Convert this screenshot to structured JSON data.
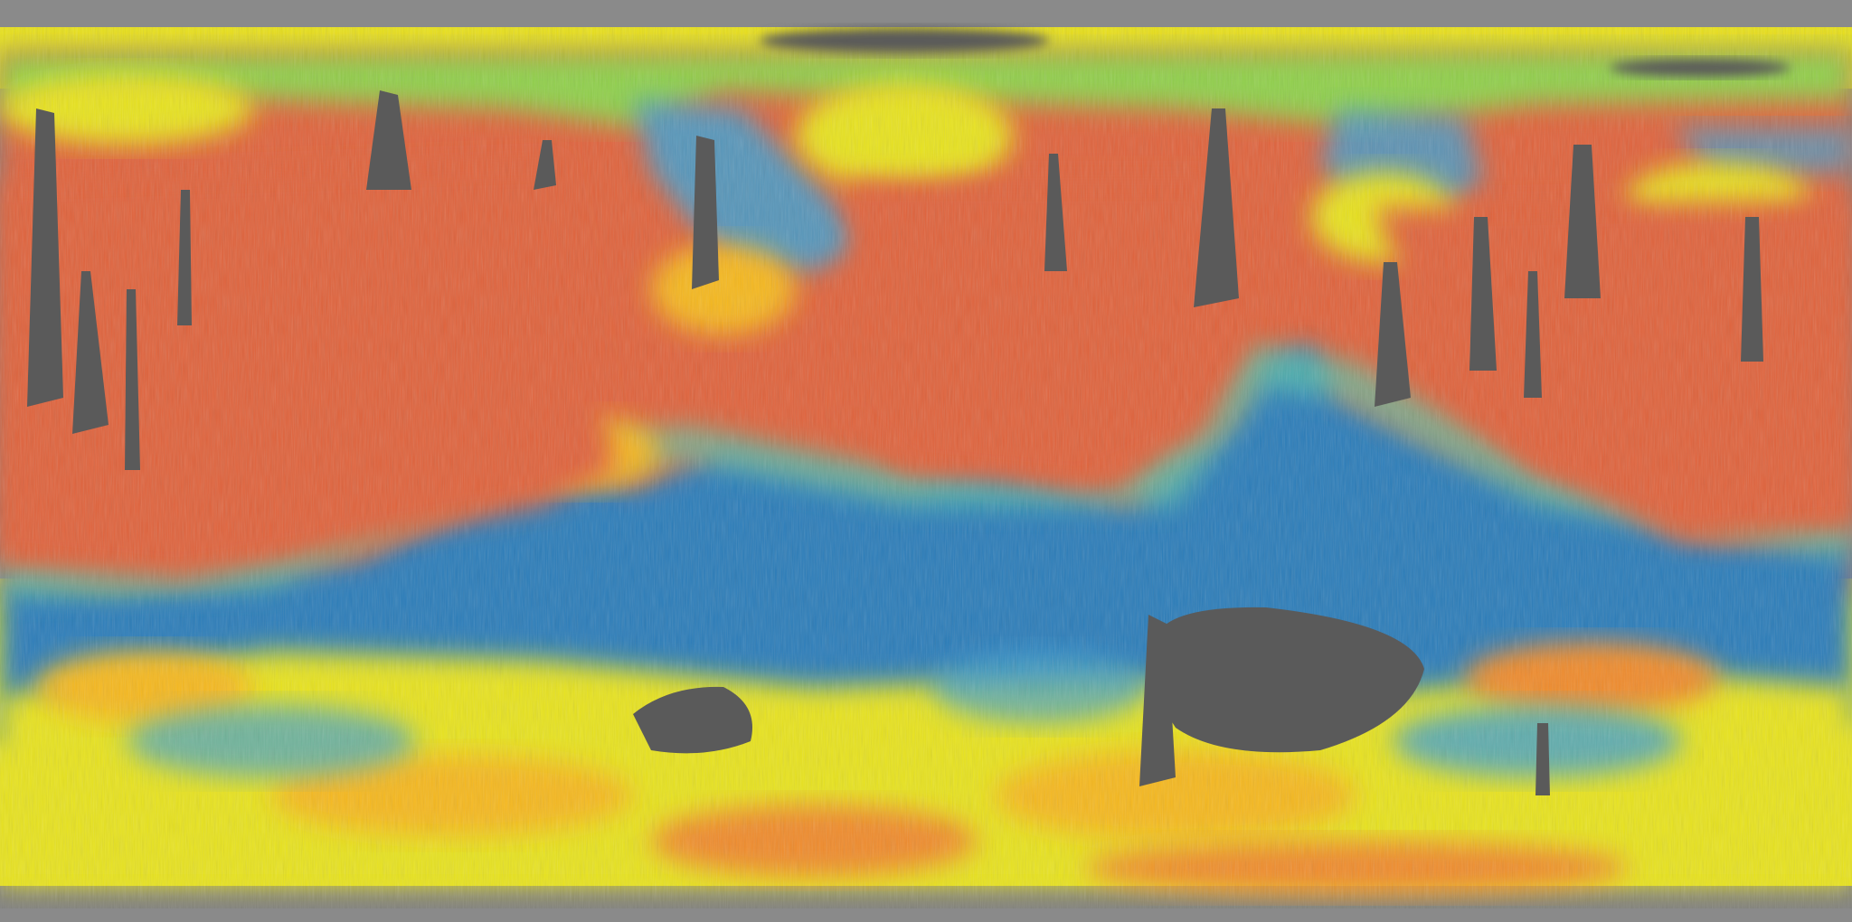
{
  "map": {
    "projection": "equirectangular",
    "basemap": "shaded-relief",
    "no_data_color": "#5a5a5a",
    "polar_band_color": "#8a8a8a",
    "color_scale": [
      "#2b7bb9",
      "#3d9fd0",
      "#5bc6a8",
      "#9ed84a",
      "#e8e31a",
      "#f6b81c",
      "#f08a2c",
      "#e0623a"
    ],
    "dominant_color": "#e0623a",
    "legend_visible": false,
    "text_labels_visible": false
  }
}
